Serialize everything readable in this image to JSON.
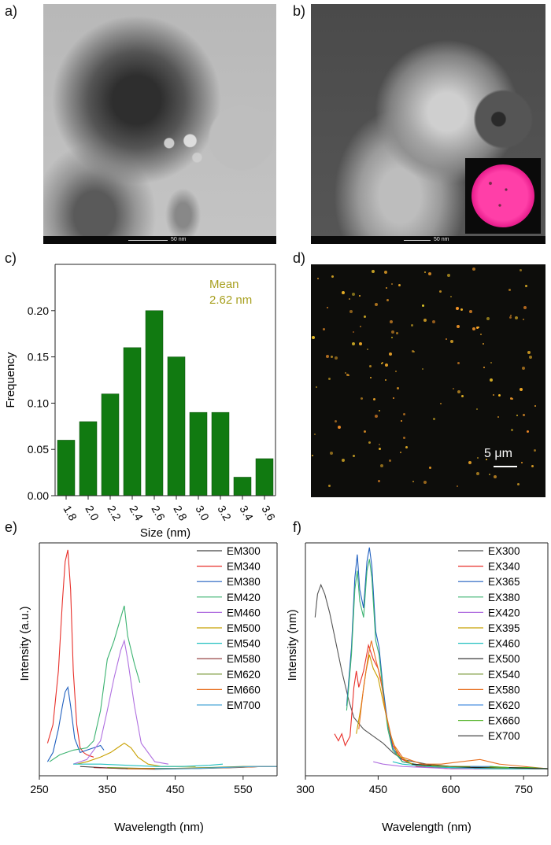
{
  "panels": {
    "a": "a)",
    "b": "b)",
    "c": "c)",
    "d": "d)",
    "e": "e)",
    "f": "f)"
  },
  "tem": {
    "scale_a": "50 nm",
    "scale_b": "50 nm"
  },
  "fluor": {
    "scale": "5 μm"
  },
  "colors": {
    "bar": "#117a11",
    "annotation": "#a8a020"
  },
  "chart_data": [
    {
      "id": "c",
      "type": "bar",
      "categories": [
        "1.8",
        "2.0",
        "2.2",
        "2.4",
        "2.6",
        "2.8",
        "3.0",
        "3.2",
        "3.4",
        "3.6"
      ],
      "values": [
        0.06,
        0.08,
        0.11,
        0.16,
        0.2,
        0.15,
        0.09,
        0.09,
        0.02,
        0.04
      ],
      "xlabel": "Size (nm)",
      "ylabel": "Frequency",
      "ylim": [
        0,
        0.25
      ],
      "yticks": [
        "0.00",
        "0.05",
        "0.10",
        "0.15",
        "0.20"
      ],
      "annotation": [
        "Mean",
        "2.62 nm"
      ]
    },
    {
      "id": "e",
      "type": "line",
      "xlabel": "Wavelength (nm)",
      "ylabel": "Intensity (a.u.)",
      "xlim": [
        250,
        600
      ],
      "xticks": [
        "250",
        "350",
        "450",
        "550"
      ],
      "legend_position": "top-right",
      "series": [
        {
          "name": "EM300",
          "color": "#444444",
          "x": [
            310,
            340,
            380,
            420,
            460,
            500,
            540,
            580,
            600
          ],
          "y": [
            0.04,
            0.035,
            0.03,
            0.028,
            0.03,
            0.032,
            0.035,
            0.04,
            0.04
          ]
        },
        {
          "name": "EM340",
          "color": "#e8302a",
          "x": [
            262,
            270,
            278,
            284,
            288,
            292,
            296,
            300,
            305,
            310,
            315,
            320,
            330
          ],
          "y": [
            0.14,
            0.22,
            0.45,
            0.75,
            0.92,
            0.97,
            0.8,
            0.45,
            0.22,
            0.12,
            0.1,
            0.09,
            0.08
          ]
        },
        {
          "name": "EM380",
          "color": "#1f5fbf",
          "x": [
            262,
            270,
            278,
            284,
            288,
            292,
            296,
            302,
            310,
            320,
            330,
            340,
            345
          ],
          "y": [
            0.06,
            0.1,
            0.2,
            0.3,
            0.36,
            0.38,
            0.3,
            0.16,
            0.1,
            0.11,
            0.12,
            0.13,
            0.11
          ]
        },
        {
          "name": "EM420",
          "color": "#3cb371",
          "x": [
            265,
            280,
            300,
            320,
            330,
            340,
            350,
            360,
            370,
            375,
            380,
            390,
            398
          ],
          "y": [
            0.06,
            0.09,
            0.11,
            0.12,
            0.15,
            0.28,
            0.5,
            0.58,
            0.68,
            0.73,
            0.6,
            0.48,
            0.4
          ]
        },
        {
          "name": "EM460",
          "color": "#b070e0",
          "x": [
            300,
            320,
            340,
            350,
            360,
            370,
            375,
            380,
            390,
            400,
            420,
            440
          ],
          "y": [
            0.05,
            0.07,
            0.15,
            0.28,
            0.42,
            0.54,
            0.58,
            0.5,
            0.3,
            0.14,
            0.06,
            0.05
          ]
        },
        {
          "name": "EM500",
          "color": "#c8a000",
          "x": [
            305,
            320,
            340,
            355,
            365,
            375,
            385,
            395,
            410,
            430,
            450,
            480
          ],
          "y": [
            0.05,
            0.06,
            0.08,
            0.1,
            0.12,
            0.14,
            0.12,
            0.08,
            0.05,
            0.04,
            0.04,
            0.04
          ]
        },
        {
          "name": "EM540",
          "color": "#20c0c0",
          "x": [
            300,
            340,
            380,
            420,
            460,
            500,
            520
          ],
          "y": [
            0.05,
            0.05,
            0.045,
            0.04,
            0.04,
            0.045,
            0.05
          ]
        },
        {
          "name": "EM580",
          "color": "#8b3030",
          "x": [
            330,
            380,
            430,
            480,
            530,
            580,
            600
          ],
          "y": [
            0.035,
            0.03,
            0.03,
            0.032,
            0.035,
            0.04,
            0.04
          ]
        },
        {
          "name": "EM620",
          "color": "#6b8e23",
          "x": [
            350,
            400,
            450,
            500,
            550,
            600
          ],
          "y": [
            0.035,
            0.032,
            0.032,
            0.035,
            0.04,
            0.04
          ]
        },
        {
          "name": "EM660",
          "color": "#e87020",
          "x": [
            380,
            430,
            480,
            530,
            580,
            600
          ],
          "y": [
            0.03,
            0.03,
            0.032,
            0.035,
            0.04,
            0.04
          ]
        },
        {
          "name": "EM700",
          "color": "#4aa8d8",
          "x": [
            420,
            470,
            520,
            570,
            600
          ],
          "y": [
            0.03,
            0.03,
            0.035,
            0.04,
            0.04
          ]
        }
      ]
    },
    {
      "id": "f",
      "type": "line",
      "xlabel": "Wavelength (nm)",
      "ylabel": "Intensity (nm)",
      "xlim": [
        300,
        800
      ],
      "xticks": [
        "300",
        "450",
        "600",
        "750"
      ],
      "legend_position": "top-right",
      "series": [
        {
          "name": "EX300",
          "color": "#555555",
          "x": [
            320,
            325,
            332,
            340,
            350,
            360,
            375,
            390,
            400,
            420,
            440,
            460,
            480,
            500,
            550,
            600,
            700,
            800
          ],
          "y": [
            0.68,
            0.78,
            0.82,
            0.78,
            0.7,
            0.6,
            0.45,
            0.32,
            0.25,
            0.2,
            0.17,
            0.14,
            0.1,
            0.07,
            0.05,
            0.04,
            0.035,
            0.03
          ]
        },
        {
          "name": "EX340",
          "color": "#e8302a",
          "x": [
            360,
            368,
            375,
            382,
            392,
            400,
            405,
            410,
            420,
            430,
            440,
            450,
            460,
            470,
            480,
            500,
            530,
            600,
            800
          ],
          "y": [
            0.18,
            0.15,
            0.18,
            0.13,
            0.17,
            0.38,
            0.45,
            0.38,
            0.45,
            0.56,
            0.5,
            0.46,
            0.36,
            0.22,
            0.13,
            0.07,
            0.04,
            0.03,
            0.03
          ]
        },
        {
          "name": "EX365",
          "color": "#1f5fbf",
          "x": [
            385,
            395,
            402,
            407,
            412,
            420,
            427,
            432,
            437,
            445,
            452,
            460,
            470,
            480,
            500,
            550,
            650,
            800
          ],
          "y": [
            0.3,
            0.55,
            0.85,
            0.95,
            0.8,
            0.72,
            0.92,
            0.98,
            0.9,
            0.62,
            0.55,
            0.38,
            0.22,
            0.12,
            0.06,
            0.04,
            0.03,
            0.03
          ]
        },
        {
          "name": "EX380",
          "color": "#3cb371",
          "x": [
            385,
            395,
            402,
            407,
            412,
            420,
            427,
            432,
            437,
            445,
            452,
            460,
            470,
            480,
            500,
            550,
            650,
            800
          ],
          "y": [
            0.28,
            0.52,
            0.8,
            0.88,
            0.75,
            0.68,
            0.88,
            0.93,
            0.85,
            0.58,
            0.52,
            0.36,
            0.2,
            0.11,
            0.06,
            0.04,
            0.03,
            0.03
          ]
        },
        {
          "name": "EX420",
          "color": "#b070e0",
          "x": [
            440,
            460,
            480,
            500,
            550,
            600,
            700,
            800
          ],
          "y": [
            0.06,
            0.05,
            0.045,
            0.04,
            0.035,
            0.03,
            0.03,
            0.03
          ]
        },
        {
          "name": "EX395",
          "color": "#c8a000",
          "x": [
            405,
            415,
            425,
            432,
            440,
            450,
            460,
            475,
            490,
            520,
            600,
            800
          ],
          "y": [
            0.18,
            0.3,
            0.45,
            0.52,
            0.46,
            0.42,
            0.32,
            0.18,
            0.09,
            0.05,
            0.035,
            0.03
          ]
        },
        {
          "name": "EX460",
          "color": "#20c0c0",
          "x": [
            480,
            500,
            550,
            600,
            700,
            800
          ],
          "y": [
            0.06,
            0.05,
            0.04,
            0.035,
            0.03,
            0.03
          ]
        },
        {
          "name": "EX500",
          "color": "#222222",
          "x": [
            520,
            560,
            600,
            650,
            700,
            800
          ],
          "y": [
            0.05,
            0.045,
            0.04,
            0.035,
            0.035,
            0.03
          ]
        },
        {
          "name": "EX540",
          "color": "#6b8e23",
          "x": [
            560,
            600,
            650,
            700,
            800
          ],
          "y": [
            0.045,
            0.04,
            0.04,
            0.035,
            0.03
          ]
        },
        {
          "name": "EX580",
          "color": "#e87020",
          "x": [
            410,
            420,
            430,
            436,
            445,
            455,
            465,
            480,
            500,
            540,
            580,
            620,
            660,
            700,
            800
          ],
          "y": [
            0.2,
            0.38,
            0.52,
            0.58,
            0.5,
            0.42,
            0.28,
            0.14,
            0.08,
            0.05,
            0.05,
            0.06,
            0.07,
            0.05,
            0.03
          ]
        },
        {
          "name": "EX620",
          "color": "#4a90e0",
          "x": [
            640,
            680,
            720,
            760,
            800
          ],
          "y": [
            0.04,
            0.04,
            0.035,
            0.035,
            0.03
          ]
        },
        {
          "name": "EX660",
          "color": "#4cb020",
          "x": [
            680,
            720,
            760,
            800
          ],
          "y": [
            0.04,
            0.035,
            0.035,
            0.03
          ]
        },
        {
          "name": "EX700",
          "color": "#333333",
          "x": [
            720,
            760,
            800
          ],
          "y": [
            0.035,
            0.032,
            0.03
          ]
        }
      ]
    }
  ]
}
